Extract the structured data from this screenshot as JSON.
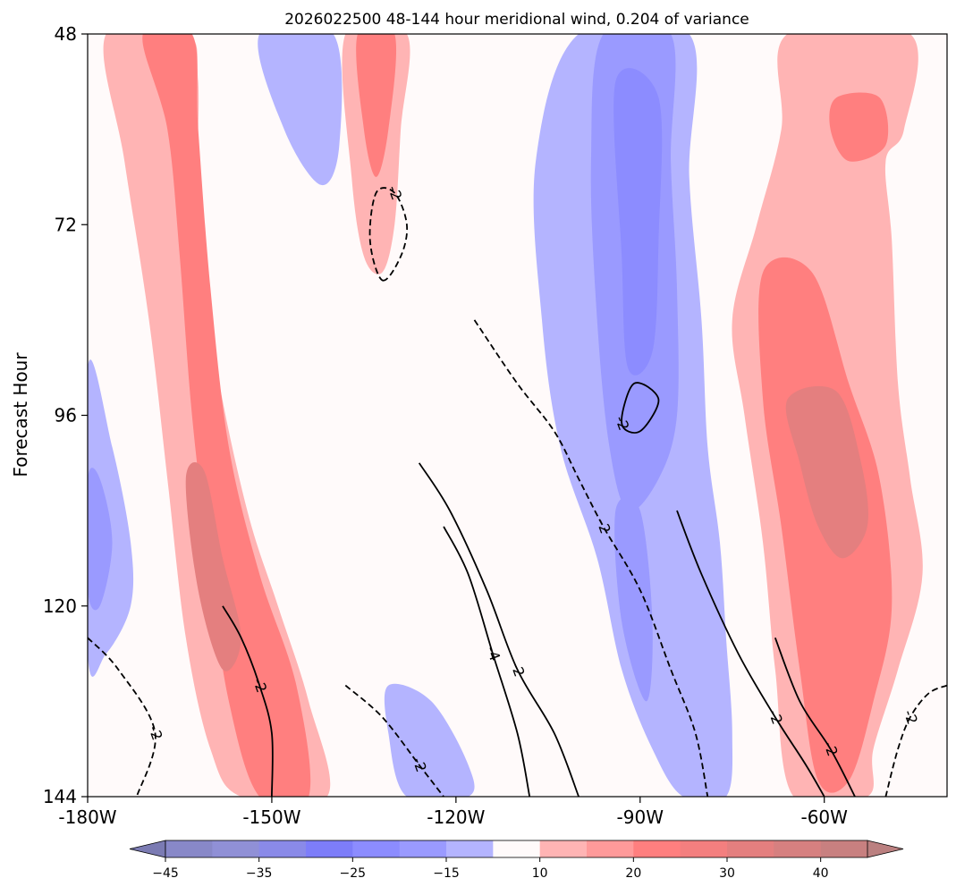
{
  "chart_data": {
    "type": "heatmap",
    "title": "2026022500 48-144 hour meridional wind, 0.204 of variance",
    "xlabel": "",
    "ylabel": "Forecast Hour",
    "x_ticks": [
      {
        "value": -180,
        "label": "-180W"
      },
      {
        "value": -150,
        "label": "-150W"
      },
      {
        "value": -120,
        "label": "-120W"
      },
      {
        "value": -90,
        "label": "-90W"
      },
      {
        "value": -60,
        "label": "-60W"
      }
    ],
    "y_ticks": [
      48,
      72,
      96,
      120,
      144
    ],
    "xlim": [
      -180,
      -40
    ],
    "ylim": [
      48,
      144
    ],
    "y_inverted": true,
    "grid": false,
    "colorbar": {
      "orientation": "horizontal",
      "location": "bottom",
      "levels": [
        -50,
        -45,
        -40,
        -35,
        -30,
        -25,
        -20,
        -15,
        -10,
        10,
        15,
        20,
        25,
        30,
        35,
        40,
        45,
        50
      ],
      "colors": [
        "#7b7bb3",
        "#8888c8",
        "#9090d6",
        "#8a8ae8",
        "#7d7df9",
        "#8c8cff",
        "#9a9aff",
        "#b4b4ff",
        "#fffafa",
        "#ffb4b4",
        "#ff9a9a",
        "#ff7f7f",
        "#f47f7f",
        "#e47f7f",
        "#d68080",
        "#c88080",
        "#bb8080"
      ],
      "extend": "both",
      "tick_values": [
        -45,
        -35,
        -25,
        -15,
        10,
        20,
        30,
        40
      ],
      "tick_labels": [
        "−45",
        "−35",
        "−25",
        "−15",
        "10",
        "20",
        "30",
        "40"
      ]
    },
    "filled_regions": [
      {
        "level": 10,
        "points": [
          [
            -177,
            48
          ],
          [
            -164,
            48
          ],
          [
            -162,
            54
          ],
          [
            -162,
            72
          ],
          [
            -159,
            90
          ],
          [
            -154,
            108
          ],
          [
            -149,
            120
          ],
          [
            -144,
            132
          ],
          [
            -141,
            144
          ],
          [
            -155,
            144
          ],
          [
            -160,
            138
          ],
          [
            -164,
            124
          ],
          [
            -167,
            104
          ],
          [
            -170,
            84
          ],
          [
            -174,
            64
          ]
        ]
      },
      {
        "level": 20,
        "points": [
          [
            -171,
            48
          ],
          [
            -163,
            48
          ],
          [
            -162,
            60
          ],
          [
            -160,
            80
          ],
          [
            -157,
            100
          ],
          [
            -152,
            116
          ],
          [
            -146,
            130
          ],
          [
            -144,
            144
          ],
          [
            -152,
            144
          ],
          [
            -157,
            132
          ],
          [
            -160,
            116
          ],
          [
            -163,
            96
          ],
          [
            -165,
            76
          ],
          [
            -167,
            60
          ]
        ]
      },
      {
        "level": 30,
        "points": [
          [
            -164,
            104
          ],
          [
            -161,
            103
          ],
          [
            -158,
            114
          ],
          [
            -155,
            124
          ],
          [
            -158,
            128
          ],
          [
            -162,
            118
          ]
        ]
      },
      {
        "level": 10,
        "points": [
          [
            -138,
            48
          ],
          [
            -128,
            48
          ],
          [
            -129,
            60
          ],
          [
            -130,
            72
          ],
          [
            -132,
            78
          ],
          [
            -135,
            76
          ],
          [
            -137,
            66
          ]
        ]
      },
      {
        "level": 20,
        "points": [
          [
            -136,
            48
          ],
          [
            -130,
            48
          ],
          [
            -131,
            60
          ],
          [
            -133,
            66
          ],
          [
            -135,
            60
          ]
        ]
      },
      {
        "level": -15,
        "points": [
          [
            -150,
            48
          ],
          [
            -141,
            48
          ],
          [
            -140,
            60
          ],
          [
            -142,
            66
          ],
          [
            -146,
            60
          ]
        ]
      },
      {
        "level": -10,
        "points": [
          [
            -152,
            48
          ],
          [
            -140,
            48
          ],
          [
            -139,
            62
          ],
          [
            -142,
            67
          ],
          [
            -148,
            60
          ]
        ]
      },
      {
        "level": -10,
        "points": [
          [
            -180,
            90
          ],
          [
            -176,
            100
          ],
          [
            -173,
            112
          ],
          [
            -173,
            120
          ],
          [
            -177,
            126
          ],
          [
            -180,
            126
          ]
        ]
      },
      {
        "level": -15,
        "points": [
          [
            -180,
            104
          ],
          [
            -178,
            104
          ],
          [
            -176,
            112
          ],
          [
            -178,
            120
          ],
          [
            -180,
            118
          ]
        ]
      },
      {
        "level": -10,
        "points": [
          [
            -100,
            48
          ],
          [
            -82,
            48
          ],
          [
            -82,
            66
          ],
          [
            -80,
            84
          ],
          [
            -79,
            100
          ],
          [
            -77,
            112
          ],
          [
            -76,
            124
          ],
          [
            -75,
            136
          ],
          [
            -76,
            144
          ],
          [
            -83,
            144
          ],
          [
            -88,
            138
          ],
          [
            -93,
            128
          ],
          [
            -97,
            114
          ],
          [
            -103,
            100
          ],
          [
            -106,
            84
          ],
          [
            -107,
            64
          ]
        ]
      },
      {
        "level": -15,
        "points": [
          [
            -96,
            48
          ],
          [
            -85,
            48
          ],
          [
            -85,
            64
          ],
          [
            -84,
            80
          ],
          [
            -84,
            96
          ],
          [
            -87,
            104
          ],
          [
            -92,
            108
          ],
          [
            -95,
            100
          ],
          [
            -97,
            84
          ],
          [
            -98,
            64
          ]
        ]
      },
      {
        "level": -20,
        "points": [
          [
            -94,
            54
          ],
          [
            -87,
            56
          ],
          [
            -87,
            74
          ],
          [
            -88,
            88
          ],
          [
            -92,
            90
          ],
          [
            -93,
            76
          ]
        ]
      },
      {
        "level": -15,
        "points": [
          [
            -94,
            108
          ],
          [
            -90,
            108
          ],
          [
            -88,
            122
          ],
          [
            -89,
            132
          ],
          [
            -93,
            122
          ]
        ]
      },
      {
        "level": -10,
        "points": [
          [
            -131,
            130
          ],
          [
            -124,
            132
          ],
          [
            -118,
            140
          ],
          [
            -118,
            144
          ],
          [
            -128,
            144
          ],
          [
            -131,
            136
          ]
        ]
      },
      {
        "level": 10,
        "points": [
          [
            -66,
            48
          ],
          [
            -46,
            48
          ],
          [
            -47,
            60
          ],
          [
            -50,
            64
          ],
          [
            -49,
            74
          ],
          [
            -48,
            92
          ],
          [
            -46,
            104
          ],
          [
            -44,
            116
          ],
          [
            -48,
            128
          ],
          [
            -52,
            138
          ],
          [
            -53,
            144
          ],
          [
            -65,
            144
          ],
          [
            -68,
            128
          ],
          [
            -70,
            112
          ],
          [
            -73,
            96
          ],
          [
            -75,
            84
          ],
          [
            -71,
            72
          ],
          [
            -67,
            60
          ]
        ]
      },
      {
        "level": 20,
        "points": [
          [
            -70,
            78
          ],
          [
            -62,
            78
          ],
          [
            -56,
            92
          ],
          [
            -51,
            104
          ],
          [
            -49,
            120
          ],
          [
            -52,
            132
          ],
          [
            -56,
            142
          ],
          [
            -61,
            142
          ],
          [
            -64,
            128
          ],
          [
            -67,
            110
          ],
          [
            -70,
            94
          ]
        ]
      },
      {
        "level": 30,
        "points": [
          [
            -66,
            94
          ],
          [
            -58,
            93
          ],
          [
            -54,
            102
          ],
          [
            -53,
            110
          ],
          [
            -57,
            114
          ],
          [
            -61,
            110
          ],
          [
            -64,
            102
          ]
        ]
      },
      {
        "level": 20,
        "points": [
          [
            -58,
            56
          ],
          [
            -51,
            56
          ],
          [
            -50,
            62
          ],
          [
            -56,
            64
          ],
          [
            -59,
            60
          ]
        ]
      }
    ],
    "contour_lines": [
      {
        "style": "dashed",
        "label": "-2",
        "points": [
          [
            -180,
            124
          ],
          [
            -175,
            128
          ],
          [
            -169,
            136
          ],
          [
            -172,
            144
          ]
        ]
      },
      {
        "style": "dashed",
        "label": "-2",
        "points": [
          [
            -132,
            79
          ],
          [
            -129,
            76
          ],
          [
            -128,
            72
          ],
          [
            -130,
            68
          ],
          [
            -133,
            68
          ],
          [
            -134,
            74
          ],
          [
            -132,
            79
          ]
        ]
      },
      {
        "style": "dashed",
        "label": "-2",
        "points": [
          [
            -117,
            84
          ],
          [
            -110,
            92
          ],
          [
            -104,
            98
          ],
          [
            -100,
            104
          ],
          [
            -96,
            110
          ],
          [
            -90,
            118
          ],
          [
            -85,
            128
          ],
          [
            -81,
            136
          ],
          [
            -79,
            144
          ]
        ]
      },
      {
        "style": "dashed",
        "label": "-2",
        "points": [
          [
            -138,
            130
          ],
          [
            -132,
            134
          ],
          [
            -126,
            140
          ],
          [
            -122,
            144
          ]
        ]
      },
      {
        "style": "dashed",
        "label": "-2",
        "points": [
          [
            -40,
            130
          ],
          [
            -43,
            131
          ],
          [
            -46,
            134
          ],
          [
            -48,
            138
          ],
          [
            -50,
            144
          ]
        ]
      },
      {
        "style": "solid",
        "label": "-2",
        "points": [
          [
            -87,
            94
          ],
          [
            -91,
            92
          ],
          [
            -93,
            97
          ],
          [
            -90,
            98
          ],
          [
            -87,
            94
          ]
        ]
      },
      {
        "style": "solid",
        "label": "-2",
        "points": [
          [
            -158,
            120
          ],
          [
            -155,
            124
          ],
          [
            -152,
            130
          ],
          [
            -150,
            136
          ],
          [
            -150,
            144
          ]
        ]
      },
      {
        "style": "solid",
        "label": "-4",
        "points": [
          [
            -122,
            110
          ],
          [
            -118,
            116
          ],
          [
            -114,
            126
          ],
          [
            -110,
            136
          ],
          [
            -108,
            144
          ]
        ]
      },
      {
        "style": "solid",
        "label": "-2",
        "points": [
          [
            -126,
            102
          ],
          [
            -121,
            108
          ],
          [
            -115,
            118
          ],
          [
            -110,
            128
          ],
          [
            -104,
            136
          ],
          [
            -100,
            144
          ]
        ]
      },
      {
        "style": "solid",
        "label": "-2",
        "points": [
          [
            -84,
            108
          ],
          [
            -80,
            116
          ],
          [
            -74,
            126
          ],
          [
            -68,
            134
          ],
          [
            -63,
            140
          ],
          [
            -60,
            144
          ]
        ]
      },
      {
        "style": "solid",
        "label": "-2",
        "points": [
          [
            -68,
            124
          ],
          [
            -64,
            132
          ],
          [
            -59,
            138
          ],
          [
            -55,
            144
          ]
        ]
      }
    ]
  }
}
